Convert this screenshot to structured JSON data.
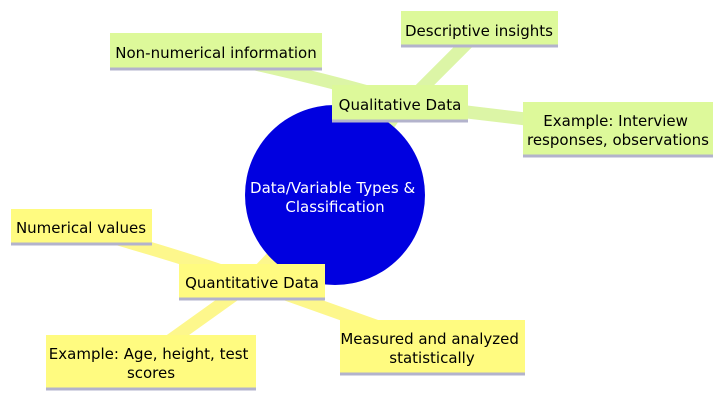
{
  "colors": {
    "root_fill": "#0000e0",
    "qualitative_branch": "#dcf5a6",
    "qualitative_node": "#ddf99a",
    "quantitative_branch": "#fdf78c",
    "quantitative_node": "#fffb80",
    "node_underline": "#b3b3cc",
    "background": "#ffffff"
  },
  "mindmap": {
    "root": {
      "lines": [
        "Data/Variable Types &",
        "Classification"
      ]
    },
    "qualitative": {
      "label": "Qualitative Data",
      "children": [
        {
          "lines": [
            "Non-numerical information"
          ]
        },
        {
          "lines": [
            "Descriptive insights"
          ]
        },
        {
          "lines": [
            "Example: Interview",
            "responses, observations"
          ]
        }
      ]
    },
    "quantitative": {
      "label": "Quantitative Data",
      "children": [
        {
          "lines": [
            "Numerical values"
          ]
        },
        {
          "lines": [
            "Example: Age, height, test",
            "scores"
          ]
        },
        {
          "lines": [
            "Measured and analyzed",
            "statistically"
          ]
        }
      ]
    }
  }
}
